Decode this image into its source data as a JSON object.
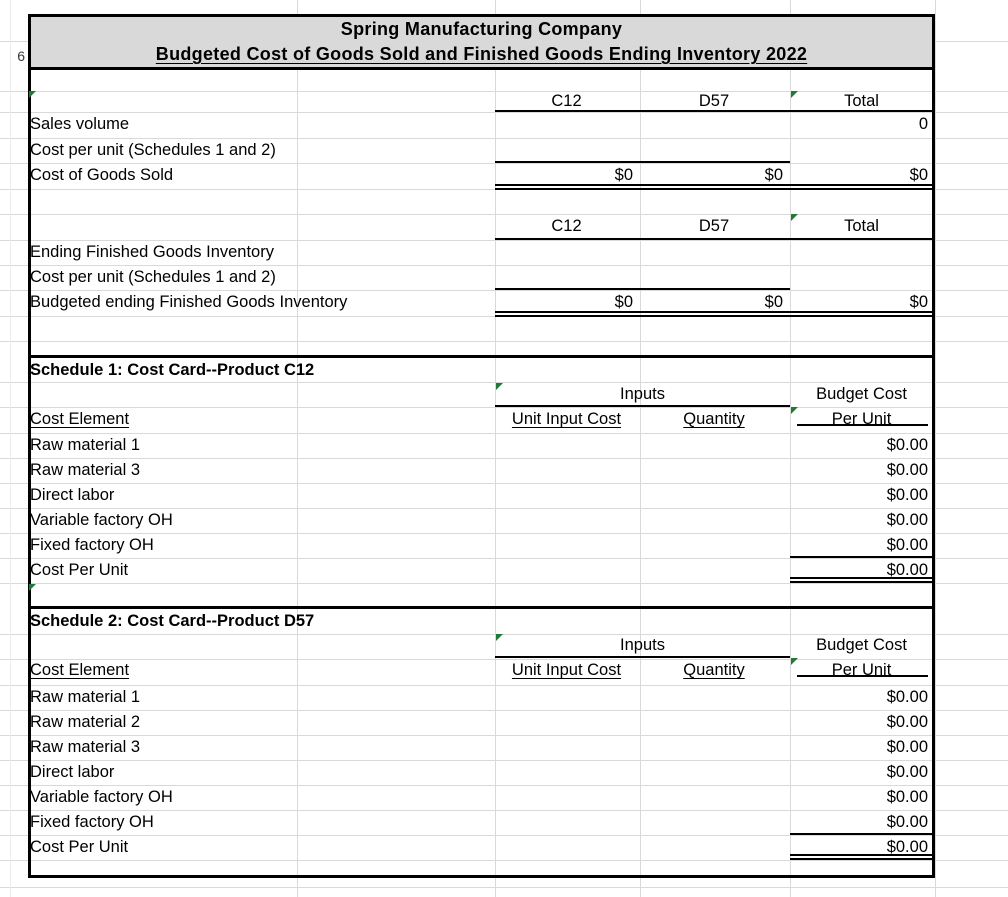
{
  "sheet": {
    "visible_row_number": "6"
  },
  "title": {
    "company": "Spring Manufacturing Company",
    "report": "Budgeted Cost of Goods Sold and Finished Goods Ending Inventory 2022"
  },
  "cogs_section": {
    "columns": [
      "C12",
      "D57",
      "Total"
    ],
    "rows": [
      {
        "label": "Sales volume",
        "c12": "",
        "d57": "",
        "total": "0"
      },
      {
        "label": "Cost per unit (Schedules 1 and 2)",
        "c12": "",
        "d57": "",
        "total": ""
      },
      {
        "label": "Cost of Goods Sold",
        "c12": "$0",
        "d57": "$0",
        "total": "$0"
      }
    ]
  },
  "inventory_section": {
    "columns": [
      "C12",
      "D57",
      "Total"
    ],
    "rows": [
      {
        "label": "Ending Finished Goods Inventory",
        "c12": "",
        "d57": "",
        "total": ""
      },
      {
        "label": "Cost per unit (Schedules 1 and 2)",
        "c12": "",
        "d57": "",
        "total": ""
      },
      {
        "label": "Budgeted ending Finished Goods Inventory",
        "c12": "$0",
        "d57": "$0",
        "total": "$0"
      }
    ]
  },
  "schedule1": {
    "title": "Schedule 1: Cost Card--Product C12",
    "inputs_header": "Inputs",
    "budget_cost_header": "Budget Cost",
    "columns": {
      "cost_element": "Cost Element",
      "unit_input_cost": "Unit Input Cost",
      "quantity": "Quantity",
      "per_unit": "Per Unit"
    },
    "rows": [
      {
        "label": "Raw material 1",
        "per_unit": "$0.00"
      },
      {
        "label": "Raw material 3",
        "per_unit": "$0.00"
      },
      {
        "label": "Direct labor",
        "per_unit": "$0.00"
      },
      {
        "label": "Variable factory OH",
        "per_unit": "$0.00"
      },
      {
        "label": "Fixed factory OH",
        "per_unit": "$0.00"
      }
    ],
    "total_row": {
      "label": "Cost Per Unit",
      "per_unit": "$0.00"
    }
  },
  "schedule2": {
    "title": "Schedule 2: Cost Card--Product D57",
    "inputs_header": "Inputs",
    "budget_cost_header": "Budget Cost",
    "columns": {
      "cost_element": "Cost Element",
      "unit_input_cost": "Unit Input Cost",
      "quantity": "Quantity",
      "per_unit": "Per Unit"
    },
    "rows": [
      {
        "label": "Raw material 1",
        "per_unit": "$0.00"
      },
      {
        "label": "Raw material 2",
        "per_unit": "$0.00"
      },
      {
        "label": "Raw material 3",
        "per_unit": "$0.00"
      },
      {
        "label": "Direct labor",
        "per_unit": "$0.00"
      },
      {
        "label": "Variable factory OH",
        "per_unit": "$0.00"
      },
      {
        "label": "Fixed factory OH",
        "per_unit": "$0.00"
      }
    ],
    "total_row": {
      "label": "Cost Per Unit",
      "per_unit": "$0.00"
    }
  },
  "colors": {
    "title_background": "#d9d9d9",
    "gridline": "#d9d9d9",
    "border": "#000000",
    "error_indicator_green": "#1f7a33"
  }
}
